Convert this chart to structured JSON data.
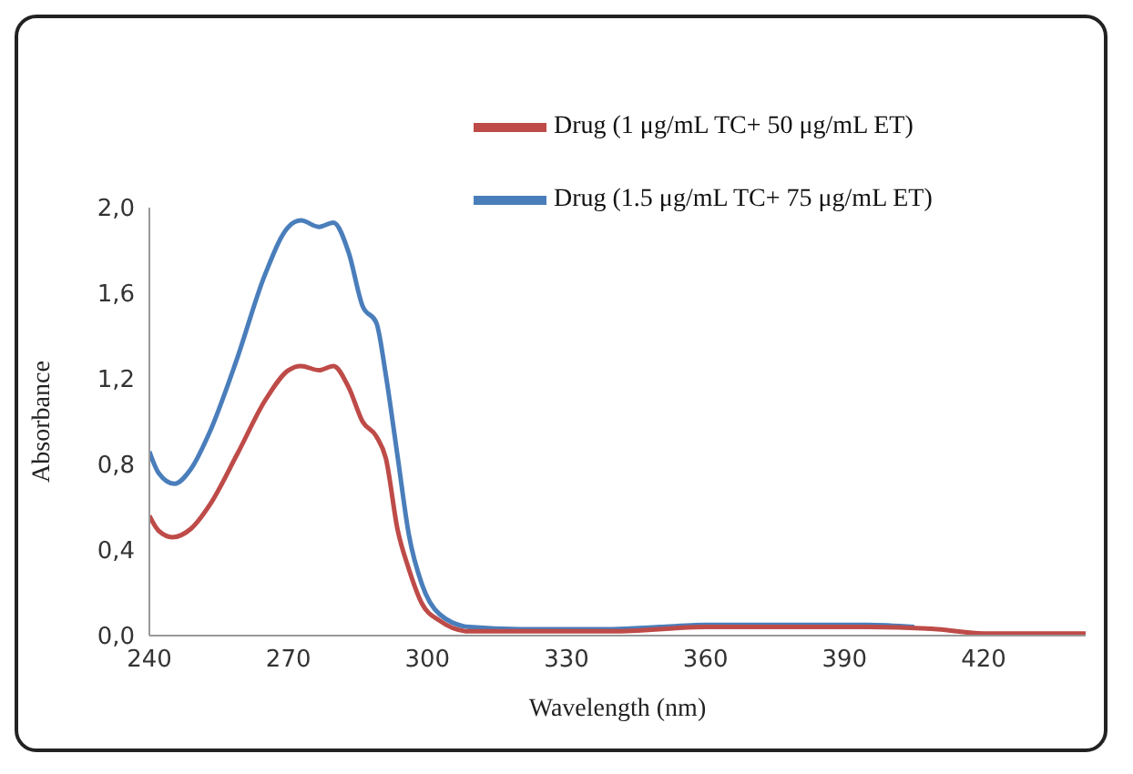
{
  "chart_data": {
    "type": "line",
    "xlabel": "Wavelength (nm)",
    "ylabel": "Absorbance",
    "xlim": [
      240,
      442
    ],
    "xticks": [
      240,
      270,
      300,
      330,
      360,
      390,
      420
    ],
    "ylim": [
      0,
      2
    ],
    "yticks": [
      {
        "value": 0,
        "label": "0,0"
      },
      {
        "value": 0.4,
        "label": "0,4"
      },
      {
        "value": 0.8,
        "label": "0,8"
      },
      {
        "value": 1.2,
        "label": "1,2"
      },
      {
        "value": 1.6,
        "label": "1,6"
      },
      {
        "value": 2,
        "label": "2,0"
      }
    ],
    "grid": false,
    "legend": "top right",
    "marker": "none",
    "line_style": "solid",
    "series": [
      {
        "name": "Drug (1 μg/mL TC+ 50 μg/mL ET)",
        "color": "#be4b48",
        "x": [
          240,
          242,
          245,
          249,
          253,
          259,
          265,
          270,
          272.7,
          276.6,
          279.7,
          283,
          286,
          289,
          291,
          293.6,
          296,
          298.8,
          302.6,
          309,
          320,
          340,
          360,
          380,
          395,
          410,
          420,
          430,
          442
        ],
        "values": [
          0.56,
          0.49,
          0.46,
          0.5,
          0.61,
          0.85,
          1.1,
          1.24,
          1.26,
          1.24,
          1.26,
          1.16,
          1.0,
          0.93,
          0.83,
          0.49,
          0.31,
          0.15,
          0.07,
          0.02,
          0.02,
          0.02,
          0.04,
          0.04,
          0.04,
          0.03,
          0.01,
          0.01,
          0.01
        ]
      },
      {
        "name": "Drug (1.5 μg/mL TC+ 75 μg/mL ET)",
        "color": "#4a7ebb",
        "x": [
          240,
          242,
          245.4,
          249,
          253,
          258.7,
          265,
          270,
          272.7,
          276.6,
          279.7,
          283,
          286,
          289,
          291,
          293.6,
          296,
          298.8,
          302.6,
          309,
          320,
          340,
          350,
          360,
          380,
          395,
          405
        ],
        "values": [
          0.86,
          0.76,
          0.71,
          0.78,
          0.95,
          1.28,
          1.69,
          1.91,
          1.94,
          1.91,
          1.93,
          1.79,
          1.54,
          1.46,
          1.22,
          0.83,
          0.47,
          0.24,
          0.1,
          0.04,
          0.03,
          0.03,
          0.04,
          0.05,
          0.05,
          0.05,
          0.04
        ]
      }
    ]
  }
}
